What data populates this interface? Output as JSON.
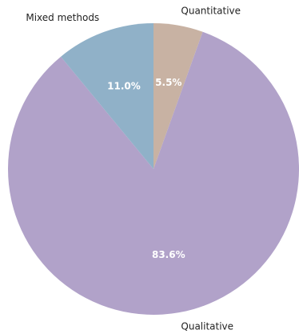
{
  "chart_data": {
    "type": "pie",
    "categories": [
      "Quantitative",
      "Qualitative",
      "Mixed methods"
    ],
    "values": [
      5.5,
      83.6,
      11.0
    ],
    "value_labels": [
      "5.5%",
      "83.6%",
      "11.0%"
    ],
    "colors": [
      "#c8b2a3",
      "#b1a2c9",
      "#90b1c8"
    ],
    "start_angle": "top",
    "direction": "clockwise",
    "title": "",
    "legend": "none"
  }
}
